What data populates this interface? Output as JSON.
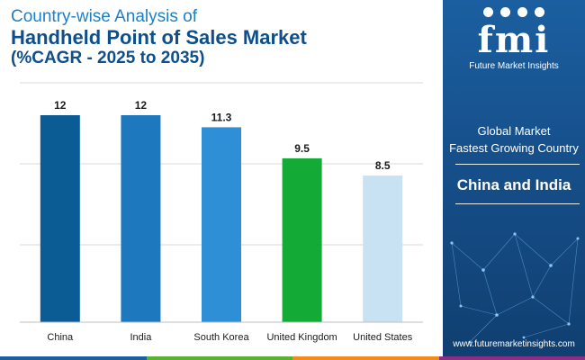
{
  "title": {
    "line1": "Country-wise Analysis of",
    "line2": "Handheld Point of Sales Market",
    "line3": "(%CAGR - 2025 to 2035)"
  },
  "chart_data": {
    "type": "bar",
    "title": "Country-wise Analysis of Handheld Point of Sales Market (%CAGR - 2025 to 2035)",
    "categories": [
      "China",
      "India",
      "South Korea",
      "United Kingdom",
      "United States"
    ],
    "values": [
      12,
      12,
      11.3,
      9.5,
      8.5
    ],
    "data_labels": [
      "12",
      "12",
      "11.3",
      "9.5",
      "8.5"
    ],
    "colors": [
      "#0b5b94",
      "#1e78be",
      "#2e8fd6",
      "#13aa35",
      "#c8e2f4"
    ],
    "ylim": [
      0,
      12
    ],
    "xlabel": "",
    "ylabel": "",
    "grid": true
  },
  "panel": {
    "logo_text": "fmi",
    "logo_subtitle": "Future Market Insights",
    "label_line1": "Global Market",
    "label_line2": "Fastest Growing Country",
    "highlight": "China and India",
    "url": "www.futuremarketinsights.com"
  },
  "colors": {
    "panel_bg": "#164f8a",
    "title_light": "#1f7fc4",
    "title_dark": "#0e4f8b",
    "grid": "#d9d9d9"
  }
}
